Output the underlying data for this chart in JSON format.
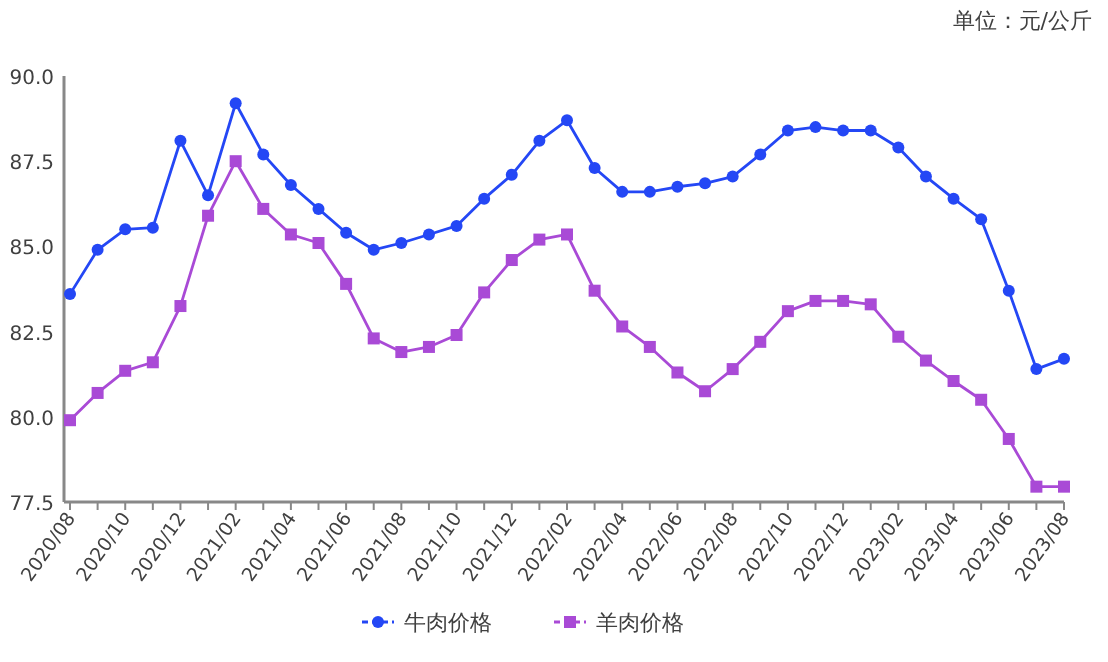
{
  "chart_data": {
    "type": "line",
    "annotations": [
      "单位：元/公斤"
    ],
    "categories": [
      "2020/08",
      null,
      "2020/10",
      null,
      "2020/12",
      null,
      "2021/02",
      null,
      "2021/04",
      null,
      "2021/06",
      null,
      "2021/08",
      null,
      "2021/10",
      null,
      "2021/12",
      null,
      "2022/02",
      null,
      "2022/04",
      null,
      "2022/06",
      null,
      "2022/08",
      null,
      "2022/10",
      null,
      "2022/12",
      null,
      "2023/02",
      null,
      "2023/04",
      null,
      "2023/06",
      null,
      "2023/08"
    ],
    "series": [
      {
        "name": "牛肉价格",
        "color": "#2447f5",
        "marker": "circle",
        "values": [
          83.6,
          84.9,
          85.5,
          85.55,
          88.1,
          86.5,
          89.2,
          87.7,
          86.8,
          86.1,
          85.4,
          84.9,
          85.1,
          85.35,
          85.6,
          86.4,
          87.1,
          88.1,
          88.7,
          87.3,
          86.6,
          86.6,
          86.75,
          86.85,
          87.05,
          87.7,
          88.4,
          88.5,
          88.4,
          88.4,
          87.9,
          87.05,
          86.4,
          85.8,
          83.7,
          81.4,
          81.7
        ]
      },
      {
        "name": "羊肉价格",
        "color": "#a94ad6",
        "marker": "square",
        "values": [
          79.9,
          80.7,
          81.35,
          81.6,
          83.25,
          85.9,
          87.5,
          86.1,
          85.35,
          85.1,
          83.9,
          82.3,
          81.9,
          82.05,
          82.4,
          83.65,
          84.6,
          85.2,
          85.35,
          83.7,
          82.65,
          82.05,
          81.3,
          80.75,
          81.4,
          82.2,
          83.1,
          83.4,
          83.4,
          83.3,
          82.35,
          81.65,
          81.05,
          80.5,
          79.35,
          77.95,
          77.95
        ]
      }
    ],
    "ylim": [
      77.5,
      90
    ],
    "yticks": [
      {
        "value": 77.5,
        "label": "77.5"
      },
      {
        "value": 80,
        "label": "80.0"
      },
      {
        "value": 82.5,
        "label": "82.5"
      },
      {
        "value": 85,
        "label": "85.0"
      },
      {
        "value": 87.5,
        "label": "87.5"
      },
      {
        "value": 90,
        "label": "90.0"
      }
    ],
    "grid": false,
    "legend": "bottom"
  }
}
